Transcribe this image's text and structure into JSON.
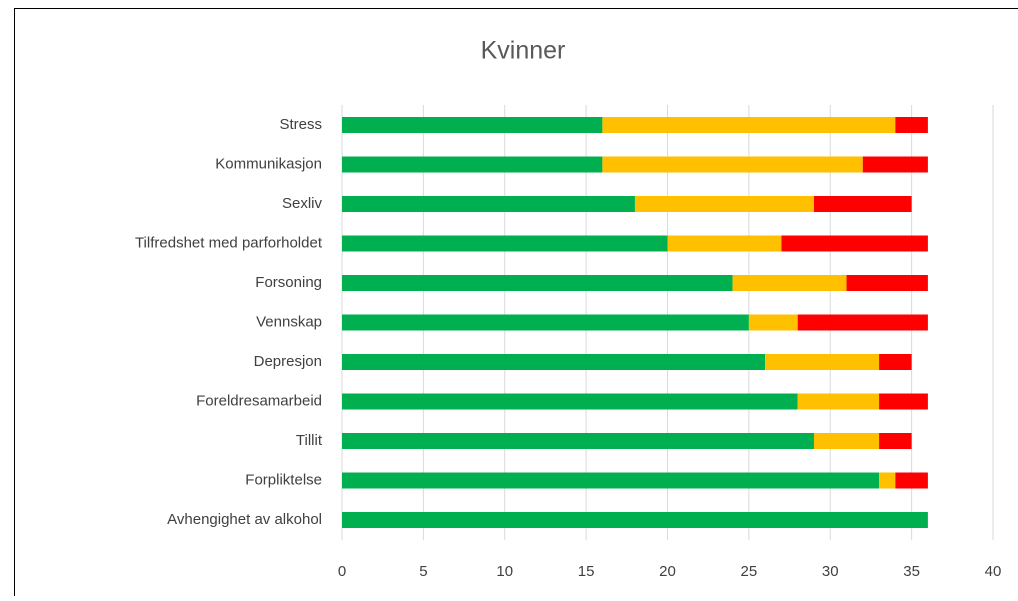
{
  "chart_data": {
    "type": "bar",
    "orientation": "horizontal",
    "stacked": true,
    "title": "Kvinner",
    "categories": [
      "Stress",
      "Kommunikasjon",
      "Sexliv",
      "Tilfredshet med parforholdet",
      "Forsoning",
      "Vennskap",
      "Depresjon",
      "Foreldresamarbeid",
      "Tillit",
      "Forpliktelse",
      "Avhengighet av alkohol"
    ],
    "series": [
      {
        "color": "#00b050",
        "values": [
          16,
          16,
          18,
          20,
          24,
          25,
          26,
          28,
          29,
          33,
          36
        ]
      },
      {
        "color": "#ffc000",
        "values": [
          18,
          16,
          11,
          7,
          7,
          3,
          7,
          5,
          4,
          1,
          0
        ]
      },
      {
        "color": "#ff0000",
        "values": [
          2,
          4,
          6,
          9,
          5,
          8,
          2,
          3,
          2,
          2,
          0
        ]
      }
    ],
    "xlim": [
      0,
      40
    ],
    "xticks": [
      0,
      5,
      10,
      15,
      20,
      25,
      30,
      35,
      40
    ],
    "grid": true
  }
}
